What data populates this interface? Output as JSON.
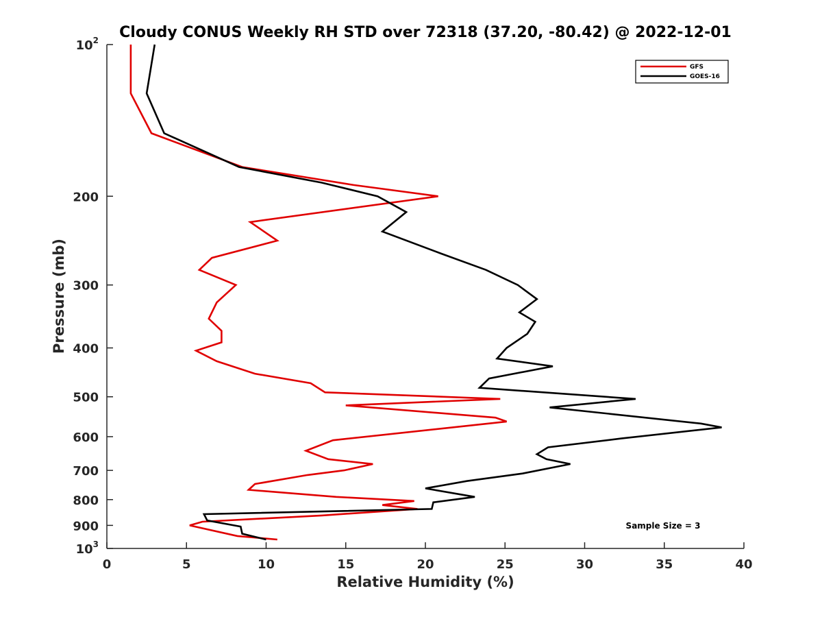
{
  "chart_data": {
    "type": "line",
    "title": "Cloudy CONUS Weekly RH STD over 72318 (37.20, -80.42) @ 2022-12-01",
    "xlabel": "Relative Humidity (%)",
    "ylabel": "Pressure (mb)",
    "xlim": [
      0,
      40
    ],
    "ylim": [
      100,
      1000
    ],
    "yscale": "log",
    "y_reversed": true,
    "x_ticks": [
      0,
      5,
      10,
      15,
      20,
      25,
      30,
      35,
      40
    ],
    "y_ticks": [
      {
        "value": 100,
        "label": "10",
        "sup": "2"
      },
      {
        "value": 200,
        "label": "200"
      },
      {
        "value": 300,
        "label": "300"
      },
      {
        "value": 400,
        "label": "400"
      },
      {
        "value": 500,
        "label": "500"
      },
      {
        "value": 600,
        "label": "600"
      },
      {
        "value": 700,
        "label": "700"
      },
      {
        "value": 800,
        "label": "800"
      },
      {
        "value": 900,
        "label": "900"
      },
      {
        "value": 1000,
        "label": "10",
        "sup": "3"
      }
    ],
    "legend_position": "top-right",
    "annotation": "Sample Size = 3",
    "series": [
      {
        "name": "GFS",
        "color": "#e00000",
        "points": [
          [
            1.5,
            100
          ],
          [
            1.5,
            125
          ],
          [
            2.8,
            150
          ],
          [
            8.5,
            175
          ],
          [
            15.5,
            190
          ],
          [
            20.8,
            200
          ],
          [
            9.0,
            225
          ],
          [
            10.7,
            245
          ],
          [
            6.6,
            265
          ],
          [
            5.8,
            280
          ],
          [
            8.1,
            300
          ],
          [
            6.9,
            325
          ],
          [
            6.4,
            350
          ],
          [
            7.2,
            370
          ],
          [
            7.2,
            390
          ],
          [
            5.6,
            405
          ],
          [
            6.9,
            425
          ],
          [
            9.3,
            450
          ],
          [
            12.8,
            470
          ],
          [
            13.7,
            490
          ],
          [
            24.7,
            505
          ],
          [
            15.0,
            520
          ],
          [
            24.4,
            550
          ],
          [
            25.1,
            560
          ],
          [
            14.2,
            610
          ],
          [
            12.5,
            640
          ],
          [
            13.9,
            665
          ],
          [
            16.7,
            680
          ],
          [
            14.9,
            700
          ],
          [
            12.6,
            715
          ],
          [
            9.3,
            745
          ],
          [
            8.9,
            765
          ],
          [
            14.4,
            790
          ],
          [
            19.3,
            805
          ],
          [
            17.3,
            820
          ],
          [
            19.5,
            835
          ],
          [
            13.5,
            860
          ],
          [
            6.0,
            885
          ],
          [
            5.2,
            900
          ],
          [
            8.2,
            945
          ],
          [
            10.7,
            960
          ]
        ]
      },
      {
        "name": "GOES-16",
        "color": "#000000",
        "points": [
          [
            3.0,
            100
          ],
          [
            2.5,
            125
          ],
          [
            3.6,
            150
          ],
          [
            8.3,
            175
          ],
          [
            13.5,
            188
          ],
          [
            17.0,
            200
          ],
          [
            18.8,
            215
          ],
          [
            17.3,
            235
          ],
          [
            21.0,
            260
          ],
          [
            23.8,
            280
          ],
          [
            25.8,
            300
          ],
          [
            27.0,
            320
          ],
          [
            25.9,
            340
          ],
          [
            26.9,
            355
          ],
          [
            26.4,
            375
          ],
          [
            25.1,
            400
          ],
          [
            24.5,
            420
          ],
          [
            28.0,
            435
          ],
          [
            24.0,
            460
          ],
          [
            23.4,
            480
          ],
          [
            33.2,
            505
          ],
          [
            27.8,
            525
          ],
          [
            37.3,
            565
          ],
          [
            38.6,
            575
          ],
          [
            32.3,
            605
          ],
          [
            27.7,
            630
          ],
          [
            27.0,
            650
          ],
          [
            27.6,
            665
          ],
          [
            29.1,
            680
          ],
          [
            26.1,
            710
          ],
          [
            22.6,
            735
          ],
          [
            20.0,
            760
          ],
          [
            23.1,
            790
          ],
          [
            20.5,
            810
          ],
          [
            20.4,
            835
          ],
          [
            6.1,
            855
          ],
          [
            6.3,
            880
          ],
          [
            8.4,
            905
          ],
          [
            8.5,
            935
          ],
          [
            10.0,
            960
          ]
        ]
      }
    ]
  }
}
